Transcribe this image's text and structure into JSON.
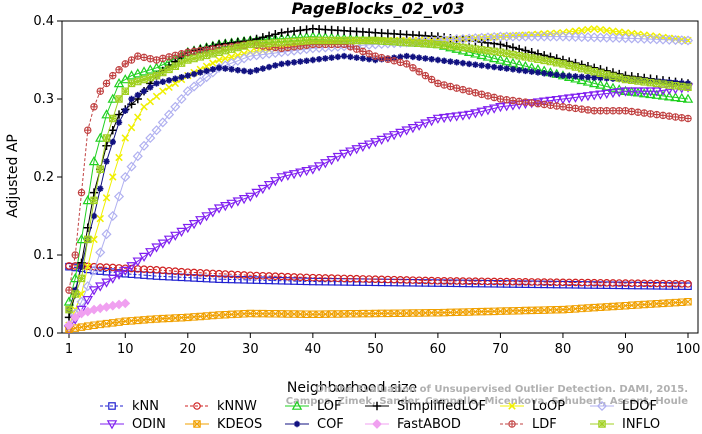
{
  "chart_data": {
    "type": "line",
    "title": "PageBlocks_02_v03",
    "xlabel": "Neighborhood size",
    "ylabel": "Adjusted AP",
    "xlim": [
      1,
      100
    ],
    "ylim": [
      0,
      0.4
    ],
    "xticks": [
      1,
      10,
      20,
      30,
      40,
      50,
      60,
      70,
      80,
      90,
      100
    ],
    "yticks": [
      0.0,
      0.1,
      0.2,
      0.3,
      0.4
    ],
    "ytick_labels": [
      "0.0",
      "0.1",
      "0.2",
      "0.3",
      "0.4"
    ],
    "legend_position": "bottom",
    "watermark": [
      "Campos, Zimek, Sander, Campello, Micenkova, Schubert, Assent, Houle",
      "On the Evaluation of Unsupervised Outlier Detection. DAMI, 2015."
    ],
    "series": [
      {
        "name": "kNN",
        "color": "#2020d0",
        "marker": "square",
        "dashed": true,
        "points": [
          [
            1,
            0.085
          ],
          [
            3,
            0.083
          ],
          [
            5,
            0.08
          ],
          [
            8,
            0.078
          ],
          [
            10,
            0.076
          ],
          [
            15,
            0.073
          ],
          [
            20,
            0.071
          ],
          [
            25,
            0.069
          ],
          [
            30,
            0.068
          ],
          [
            40,
            0.066
          ],
          [
            50,
            0.065
          ],
          [
            60,
            0.064
          ],
          [
            70,
            0.063
          ],
          [
            80,
            0.062
          ],
          [
            90,
            0.061
          ],
          [
            100,
            0.06
          ]
        ]
      },
      {
        "name": "kNNW",
        "color": "#d02020",
        "marker": "circle",
        "dashed": true,
        "points": [
          [
            1,
            0.086
          ],
          [
            3,
            0.086
          ],
          [
            5,
            0.085
          ],
          [
            8,
            0.084
          ],
          [
            10,
            0.083
          ],
          [
            15,
            0.081
          ],
          [
            20,
            0.078
          ],
          [
            25,
            0.076
          ],
          [
            30,
            0.074
          ],
          [
            40,
            0.071
          ],
          [
            50,
            0.069
          ],
          [
            60,
            0.067
          ],
          [
            70,
            0.066
          ],
          [
            80,
            0.065
          ],
          [
            90,
            0.064
          ],
          [
            100,
            0.063
          ]
        ]
      },
      {
        "name": "LOF",
        "color": "#20d020",
        "marker": "triangle",
        "points": [
          [
            1,
            0.04
          ],
          [
            2,
            0.07
          ],
          [
            3,
            0.12
          ],
          [
            5,
            0.22
          ],
          [
            7,
            0.28
          ],
          [
            9,
            0.32
          ],
          [
            11,
            0.33
          ],
          [
            15,
            0.34
          ],
          [
            20,
            0.36
          ],
          [
            25,
            0.37
          ],
          [
            30,
            0.375
          ],
          [
            40,
            0.38
          ],
          [
            50,
            0.375
          ],
          [
            60,
            0.37
          ],
          [
            70,
            0.35
          ],
          [
            80,
            0.33
          ],
          [
            90,
            0.31
          ],
          [
            100,
            0.3
          ]
        ]
      },
      {
        "name": "SimplifiedLOF",
        "color": "#000000",
        "marker": "plus",
        "points": [
          [
            1,
            0.02
          ],
          [
            2,
            0.05
          ],
          [
            3,
            0.09
          ],
          [
            5,
            0.18
          ],
          [
            7,
            0.24
          ],
          [
            9,
            0.28
          ],
          [
            12,
            0.3
          ],
          [
            15,
            0.33
          ],
          [
            20,
            0.36
          ],
          [
            25,
            0.37
          ],
          [
            30,
            0.375
          ],
          [
            35,
            0.385
          ],
          [
            40,
            0.39
          ],
          [
            50,
            0.385
          ],
          [
            60,
            0.38
          ],
          [
            70,
            0.37
          ],
          [
            80,
            0.35
          ],
          [
            90,
            0.33
          ],
          [
            100,
            0.32
          ]
        ]
      },
      {
        "name": "LoOP",
        "color": "#f0f000",
        "marker": "x",
        "points": [
          [
            1,
            0.01
          ],
          [
            3,
            0.05
          ],
          [
            5,
            0.12
          ],
          [
            8,
            0.2
          ],
          [
            10,
            0.25
          ],
          [
            13,
            0.29
          ],
          [
            16,
            0.31
          ],
          [
            20,
            0.33
          ],
          [
            25,
            0.35
          ],
          [
            30,
            0.36
          ],
          [
            40,
            0.37
          ],
          [
            50,
            0.375
          ],
          [
            60,
            0.375
          ],
          [
            70,
            0.38
          ],
          [
            80,
            0.385
          ],
          [
            85,
            0.39
          ],
          [
            90,
            0.385
          ],
          [
            100,
            0.375
          ]
        ]
      },
      {
        "name": "LDOF",
        "color": "#b0b0f0",
        "marker": "diamond",
        "points": [
          [
            1,
            0.01
          ],
          [
            3,
            0.04
          ],
          [
            5,
            0.08
          ],
          [
            8,
            0.15
          ],
          [
            10,
            0.2
          ],
          [
            13,
            0.24
          ],
          [
            16,
            0.27
          ],
          [
            20,
            0.31
          ],
          [
            25,
            0.34
          ],
          [
            30,
            0.355
          ],
          [
            40,
            0.365
          ],
          [
            50,
            0.37
          ],
          [
            60,
            0.375
          ],
          [
            70,
            0.38
          ],
          [
            80,
            0.38
          ],
          [
            90,
            0.378
          ],
          [
            100,
            0.375
          ]
        ]
      },
      {
        "name": "ODIN",
        "color": "#8020f0",
        "marker": "triangle-down",
        "points": [
          [
            1,
            0.005
          ],
          [
            3,
            0.03
          ],
          [
            5,
            0.055
          ],
          [
            8,
            0.07
          ],
          [
            10,
            0.08
          ],
          [
            15,
            0.11
          ],
          [
            20,
            0.135
          ],
          [
            25,
            0.16
          ],
          [
            30,
            0.175
          ],
          [
            35,
            0.2
          ],
          [
            40,
            0.21
          ],
          [
            45,
            0.23
          ],
          [
            50,
            0.245
          ],
          [
            55,
            0.26
          ],
          [
            60,
            0.275
          ],
          [
            65,
            0.28
          ],
          [
            70,
            0.29
          ],
          [
            75,
            0.295
          ],
          [
            80,
            0.3
          ],
          [
            85,
            0.305
          ],
          [
            90,
            0.31
          ],
          [
            95,
            0.31
          ],
          [
            100,
            0.315
          ]
        ]
      },
      {
        "name": "KDEOS",
        "color": "#f0a000",
        "marker": "square-x",
        "points": [
          [
            1,
            0.005
          ],
          [
            5,
            0.01
          ],
          [
            10,
            0.015
          ],
          [
            15,
            0.018
          ],
          [
            20,
            0.02
          ],
          [
            25,
            0.023
          ],
          [
            30,
            0.025
          ],
          [
            40,
            0.024
          ],
          [
            50,
            0.025
          ],
          [
            60,
            0.026
          ],
          [
            70,
            0.028
          ],
          [
            80,
            0.03
          ],
          [
            90,
            0.035
          ],
          [
            100,
            0.04
          ]
        ]
      },
      {
        "name": "COF",
        "color": "#101080",
        "marker": "asterisk",
        "points": [
          [
            1,
            0.03
          ],
          [
            2,
            0.055
          ],
          [
            3,
            0.085
          ],
          [
            4,
            0.12
          ],
          [
            5,
            0.15
          ],
          [
            7,
            0.22
          ],
          [
            9,
            0.27
          ],
          [
            11,
            0.3
          ],
          [
            15,
            0.32
          ],
          [
            20,
            0.33
          ],
          [
            25,
            0.34
          ],
          [
            30,
            0.335
          ],
          [
            35,
            0.345
          ],
          [
            40,
            0.35
          ],
          [
            45,
            0.355
          ],
          [
            50,
            0.35
          ],
          [
            55,
            0.355
          ],
          [
            60,
            0.35
          ],
          [
            70,
            0.34
          ],
          [
            80,
            0.33
          ],
          [
            90,
            0.325
          ],
          [
            100,
            0.32
          ]
        ]
      },
      {
        "name": "FastABOD",
        "color": "#f0a0f0",
        "marker": "diamond-filled",
        "points": [
          [
            1,
            0.01
          ],
          [
            2,
            0.02
          ],
          [
            3,
            0.025
          ],
          [
            5,
            0.03
          ],
          [
            8,
            0.035
          ],
          [
            10,
            0.038
          ]
        ]
      },
      {
        "name": "LDF",
        "color": "#c04040",
        "marker": "circle-plus",
        "dashed": true,
        "points": [
          [
            1,
            0.055
          ],
          [
            2,
            0.1
          ],
          [
            3,
            0.18
          ],
          [
            4,
            0.26
          ],
          [
            5,
            0.29
          ],
          [
            6,
            0.31
          ],
          [
            8,
            0.33
          ],
          [
            10,
            0.345
          ],
          [
            12,
            0.355
          ],
          [
            15,
            0.35
          ],
          [
            20,
            0.36
          ],
          [
            25,
            0.365
          ],
          [
            30,
            0.37
          ],
          [
            35,
            0.365
          ],
          [
            40,
            0.37
          ],
          [
            45,
            0.37
          ],
          [
            50,
            0.355
          ],
          [
            55,
            0.345
          ],
          [
            60,
            0.32
          ],
          [
            65,
            0.31
          ],
          [
            70,
            0.3
          ],
          [
            75,
            0.295
          ],
          [
            80,
            0.29
          ],
          [
            85,
            0.285
          ],
          [
            90,
            0.285
          ],
          [
            95,
            0.28
          ],
          [
            100,
            0.275
          ]
        ]
      },
      {
        "name": "INFLO",
        "color": "#a0d020",
        "marker": "square-star",
        "points": [
          [
            1,
            0.03
          ],
          [
            3,
            0.07
          ],
          [
            5,
            0.17
          ],
          [
            7,
            0.25
          ],
          [
            9,
            0.3
          ],
          [
            11,
            0.32
          ],
          [
            15,
            0.33
          ],
          [
            20,
            0.35
          ],
          [
            25,
            0.36
          ],
          [
            30,
            0.37
          ],
          [
            40,
            0.375
          ],
          [
            50,
            0.375
          ],
          [
            60,
            0.37
          ],
          [
            70,
            0.36
          ],
          [
            80,
            0.345
          ],
          [
            90,
            0.325
          ],
          [
            100,
            0.315
          ]
        ]
      }
    ]
  }
}
